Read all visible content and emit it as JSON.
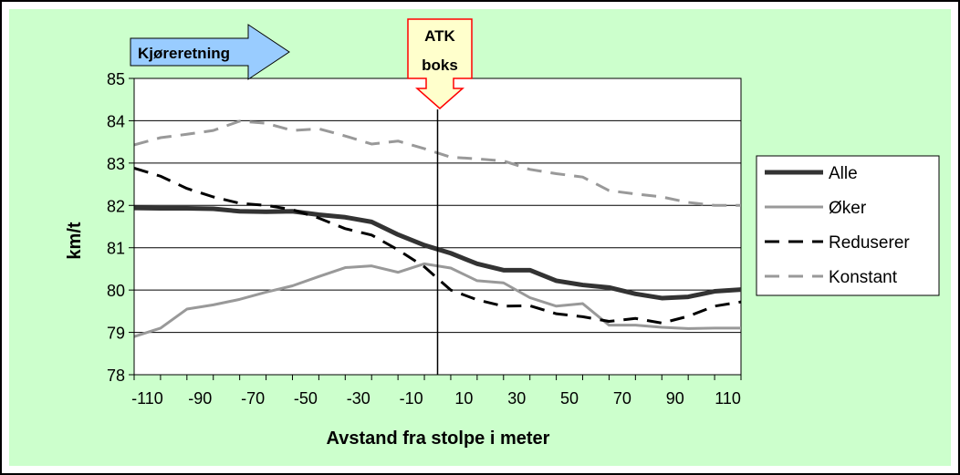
{
  "chart_data": {
    "type": "line",
    "title": "",
    "xlabel": "Avstand fra stolpe i meter",
    "ylabel": "km/t",
    "xlim": [
      -115,
      115
    ],
    "ylim": [
      78,
      85
    ],
    "x_ticks": [
      -110,
      -90,
      -70,
      -50,
      -30,
      -10,
      10,
      30,
      50,
      70,
      90,
      110
    ],
    "y_ticks": [
      78,
      79,
      80,
      81,
      82,
      83,
      84,
      85
    ],
    "grid": "horizontal",
    "legend_position": "right",
    "background": "#ccffcc",
    "plot_background": "#ffffff",
    "marker_line": {
      "x": 0
    },
    "annotations": {
      "direction_arrow": {
        "text": "Kjøreretning",
        "fill": "#99ccff"
      },
      "atk_box": {
        "line1": "ATK",
        "line2": "boks",
        "fill": "#ffffcc",
        "border": "#ff0000"
      }
    },
    "x": [
      -115,
      -105,
      -95,
      -85,
      -75,
      -65,
      -55,
      -45,
      -35,
      -25,
      -15,
      -5,
      5,
      15,
      25,
      35,
      45,
      55,
      65,
      75,
      85,
      95,
      105,
      115
    ],
    "series": [
      {
        "name": "Alle",
        "color": "#333333",
        "style": "solid",
        "values": [
          81.94,
          81.93,
          81.93,
          81.92,
          81.86,
          81.85,
          81.86,
          81.78,
          81.72,
          81.61,
          81.31,
          81.06,
          80.87,
          80.62,
          80.47,
          80.47,
          80.22,
          80.12,
          80.06,
          79.91,
          79.81,
          79.84,
          79.97,
          80.01
        ]
      },
      {
        "name": "Øker",
        "color": "#999999",
        "style": "solid",
        "values": [
          78.9,
          79.1,
          79.55,
          79.65,
          79.78,
          79.95,
          80.1,
          80.32,
          80.53,
          80.57,
          80.42,
          80.62,
          80.52,
          80.22,
          80.17,
          79.82,
          79.62,
          79.68,
          79.17,
          79.17,
          79.12,
          79.09,
          79.1,
          79.1
        ]
      },
      {
        "name": "Reduserer",
        "color": "#000000",
        "style": "dashed",
        "values": [
          82.88,
          82.69,
          82.4,
          82.2,
          82.05,
          82.0,
          81.9,
          81.7,
          81.45,
          81.3,
          80.95,
          80.55,
          80.0,
          79.77,
          79.62,
          79.63,
          79.44,
          79.37,
          79.26,
          79.33,
          79.22,
          79.38,
          79.62,
          79.72
        ]
      },
      {
        "name": "Konstant",
        "color": "#999999",
        "style": "dashed",
        "values": [
          83.43,
          83.6,
          83.68,
          83.77,
          83.99,
          83.94,
          83.77,
          83.81,
          83.64,
          83.45,
          83.52,
          83.34,
          83.14,
          83.1,
          83.05,
          82.85,
          82.75,
          82.67,
          82.35,
          82.27,
          82.2,
          82.07,
          82.0,
          82.0
        ]
      }
    ]
  }
}
